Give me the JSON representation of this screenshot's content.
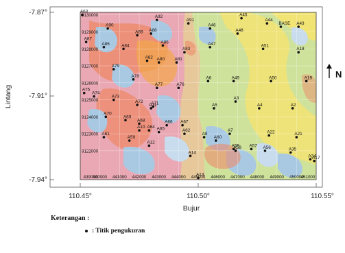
{
  "axes": {
    "ylabel": "Lintang",
    "xlabel": "Bujur",
    "lat_ticks": [
      "-7.87°",
      "-7.91°",
      "-7.94°"
    ],
    "lon_ticks": [
      "110.45°",
      "110.50°",
      "110.55°"
    ],
    "northing_ticks": [
      "9130000",
      "9129000",
      "9128000",
      "9127000",
      "9126000",
      "9125000",
      "9124000",
      "9123000",
      "9122000"
    ],
    "easting_ticks": [
      "439000",
      "440000",
      "441000",
      "442000",
      "443000",
      "444000",
      "445000",
      "446000",
      "447000",
      "448000",
      "449000",
      "450000",
      "451000"
    ]
  },
  "north_arrow": {
    "label": "N",
    "icon": "north-arrow-icon"
  },
  "legend": {
    "title": "Keterangan :",
    "item_label": ": Titik pengukuran"
  },
  "colors": {
    "pink": "#e9a8b3",
    "salmon": "#ee8a6a",
    "orange": "#f2a64a",
    "tan": "#e6c89a",
    "yellow": "#f1e374",
    "green": "#cfe29c",
    "blue": "#a9c9e3",
    "lightblue": "#c8dced",
    "points": "#111111"
  },
  "points": [
    {
      "name": "A63",
      "e": 439100,
      "n": 9130000
    },
    {
      "name": "A90",
      "e": 440400,
      "n": 9129200
    },
    {
      "name": "A92",
      "e": 442900,
      "n": 9129700
    },
    {
      "name": "A91",
      "e": 444500,
      "n": 9129500
    },
    {
      "name": "A46",
      "e": 445600,
      "n": 9129200
    },
    {
      "name": "A45",
      "e": 447200,
      "n": 9129800
    },
    {
      "name": "A44",
      "e": 448500,
      "n": 9129500
    },
    {
      "name": "BASE",
      "e": 449200,
      "n": 9129300
    },
    {
      "name": "A43",
      "e": 450100,
      "n": 9129300
    },
    {
      "name": "A89",
      "e": 441900,
      "n": 9128800
    },
    {
      "name": "A88",
      "e": 442600,
      "n": 9128900
    },
    {
      "name": "A48",
      "e": 447000,
      "n": 9128900
    },
    {
      "name": "A87",
      "e": 439300,
      "n": 9128400
    },
    {
      "name": "A85",
      "e": 440200,
      "n": 9128100
    },
    {
      "name": "A84",
      "e": 441200,
      "n": 9128000
    },
    {
      "name": "A86",
      "e": 443200,
      "n": 9128200
    },
    {
      "name": "A47",
      "e": 445600,
      "n": 9128100
    },
    {
      "name": "A83",
      "e": 444300,
      "n": 9127800
    },
    {
      "name": "A51",
      "e": 448300,
      "n": 9128000
    },
    {
      "name": "A18",
      "e": 450100,
      "n": 9127800
    },
    {
      "name": "A82",
      "e": 442400,
      "n": 9127300
    },
    {
      "name": "A80",
      "e": 443000,
      "n": 9127200
    },
    {
      "name": "A81",
      "e": 443900,
      "n": 9127200
    },
    {
      "name": "A79",
      "e": 440700,
      "n": 9126800
    },
    {
      "name": "A78",
      "e": 441700,
      "n": 9126200
    },
    {
      "name": "A6",
      "e": 445500,
      "n": 9126100
    },
    {
      "name": "A49",
      "e": 446800,
      "n": 9126100
    },
    {
      "name": "A50",
      "e": 448700,
      "n": 9126100
    },
    {
      "name": "A19",
      "e": 450500,
      "n": 9126100
    },
    {
      "name": "A77",
      "e": 442900,
      "n": 9125700
    },
    {
      "name": "A76",
      "e": 444000,
      "n": 9125700
    },
    {
      "name": "A75",
      "e": 439200,
      "n": 9125400
    },
    {
      "name": "A74",
      "e": 439700,
      "n": 9125200
    },
    {
      "name": "A73",
      "e": 440700,
      "n": 9125000
    },
    {
      "name": "A3",
      "e": 446900,
      "n": 9124900
    },
    {
      "name": "A72",
      "e": 441900,
      "n": 9124700
    },
    {
      "name": "A71",
      "e": 442700,
      "n": 9124600
    },
    {
      "name": "A11",
      "e": 442600,
      "n": 9124500
    },
    {
      "name": "A5",
      "e": 445800,
      "n": 9124500
    },
    {
      "name": "A4",
      "e": 448100,
      "n": 9124500
    },
    {
      "name": "A2",
      "e": 449800,
      "n": 9124500
    },
    {
      "name": "A70",
      "e": 440300,
      "n": 9124000
    },
    {
      "name": "A69",
      "e": 441300,
      "n": 9123800
    },
    {
      "name": "A68",
      "e": 442000,
      "n": 9123600
    },
    {
      "name": "A66",
      "e": 443400,
      "n": 9123500
    },
    {
      "name": "A67",
      "e": 444200,
      "n": 9123500
    },
    {
      "name": "A10",
      "e": 442000,
      "n": 9123200
    },
    {
      "name": "A64",
      "e": 442500,
      "n": 9123200
    },
    {
      "name": "A65",
      "e": 443000,
      "n": 9123100
    },
    {
      "name": "A62",
      "e": 444300,
      "n": 9123000
    },
    {
      "name": "A7",
      "e": 446600,
      "n": 9123000
    },
    {
      "name": "A22",
      "e": 448600,
      "n": 9122900
    },
    {
      "name": "A21",
      "e": 450000,
      "n": 9122800
    },
    {
      "name": "A8",
      "e": 445300,
      "n": 9122800
    },
    {
      "name": "A60",
      "e": 445900,
      "n": 9122600
    },
    {
      "name": "A61",
      "e": 440200,
      "n": 9122800
    },
    {
      "name": "A59",
      "e": 441500,
      "n": 9122600
    },
    {
      "name": "A12",
      "e": 442500,
      "n": 9122300
    },
    {
      "name": "A55",
      "e": 446800,
      "n": 9122100
    },
    {
      "name": "A58",
      "e": 446900,
      "n": 9122000
    },
    {
      "name": "A57",
      "e": 447700,
      "n": 9122100
    },
    {
      "name": "A56",
      "e": 448400,
      "n": 9122000
    },
    {
      "name": "A35",
      "e": 449700,
      "n": 9121900
    },
    {
      "name": "A14",
      "e": 444600,
      "n": 9121700
    },
    {
      "name": "A34",
      "e": 450700,
      "n": 9121500
    },
    {
      "name": "A17",
      "e": 450900,
      "n": 9121400
    },
    {
      "name": "A13",
      "e": 445000,
      "n": 9120400
    }
  ]
}
